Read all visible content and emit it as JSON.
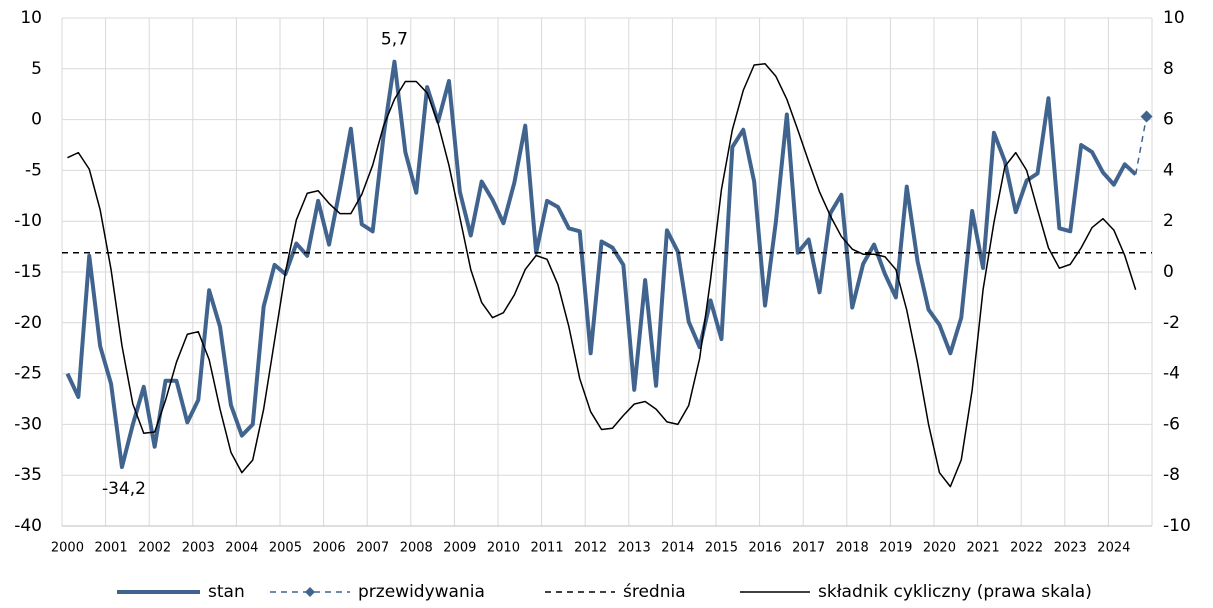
{
  "chart_data": {
    "type": "line",
    "categories": [
      "2000",
      null,
      null,
      null,
      "2001",
      null,
      null,
      null,
      "2002",
      null,
      null,
      null,
      "2003",
      null,
      null,
      null,
      "2004",
      null,
      null,
      null,
      "2005",
      null,
      null,
      null,
      "2006",
      null,
      null,
      null,
      "2007",
      null,
      null,
      null,
      "2008",
      null,
      null,
      null,
      "2009",
      null,
      null,
      null,
      "2010",
      null,
      null,
      null,
      "2011",
      null,
      null,
      null,
      "2012",
      null,
      null,
      null,
      "2013",
      null,
      null,
      null,
      "2014",
      null,
      null,
      null,
      "2015",
      null,
      null,
      null,
      "2016",
      null,
      null,
      null,
      "2017",
      null,
      null,
      null,
      "2018",
      null,
      null,
      null,
      "2019",
      null,
      null,
      null,
      "2020",
      null,
      null,
      null,
      "2021",
      null,
      null,
      null,
      "2022",
      null,
      null,
      null,
      "2023",
      null,
      null,
      null,
      "2024",
      null,
      null,
      null
    ],
    "ylim": [
      -40,
      10
    ],
    "yticks": [
      -40,
      -35,
      -30,
      -25,
      -20,
      -15,
      -10,
      -5,
      0,
      5,
      10
    ],
    "y2lim": [
      -10,
      10
    ],
    "y2ticks": [
      -10,
      -8,
      -6,
      -4,
      -2,
      0,
      2,
      4,
      6,
      8,
      10
    ],
    "grid": true,
    "legend": "bottom",
    "series": [
      {
        "name": "stan",
        "color": "#41648f",
        "style": "solid",
        "width": 4,
        "values": [
          -25,
          -27.3,
          -13.4,
          -22.3,
          -26,
          -34.2,
          -30,
          -26.3,
          -32.2,
          -25.7,
          -25.7,
          -29.8,
          -27.6,
          -16.8,
          -20.4,
          -28.1,
          -31.1,
          -30,
          -18.4,
          -14.3,
          -15.2,
          -12.2,
          -13.4,
          -8,
          -12.3,
          -6.8,
          -0.9,
          -10.3,
          -11,
          -1.6,
          5.7,
          -3.2,
          -7.2,
          3.2,
          -0.2,
          3.8,
          -7.1,
          -11.4,
          -6.1,
          -7.9,
          -10.2,
          -6.2,
          -0.6,
          -13.1,
          -8,
          -8.6,
          -10.7,
          -11,
          -23,
          -12,
          -12.6,
          -14.3,
          -26.6,
          -15.8,
          -26.2,
          -10.9,
          -13,
          -19.9,
          -22.4,
          -17.8,
          -21.6,
          -2.7,
          -1,
          -6.1,
          -18.3,
          -10,
          0.5,
          -13.1,
          -11.8,
          -17,
          -9.2,
          -7.4,
          -18.5,
          -14.2,
          -12.3,
          -15.2,
          -17.5,
          -6.6,
          -14,
          -18.7,
          -20.2,
          -23,
          -19.5,
          -9,
          -14.6,
          -1.3,
          -4.1,
          -9.1,
          -6,
          -5.3,
          2.1,
          -10.7,
          -11,
          -2.5,
          -3.2,
          -5.2,
          -6.4,
          -4.4,
          -5.4,
          null
        ],
        "value_labels": [
          null,
          null,
          null,
          null,
          null,
          "-34,2",
          null,
          null,
          null,
          null,
          null,
          null,
          null,
          null,
          null,
          null,
          null,
          null,
          null,
          null,
          null,
          null,
          null,
          null,
          null,
          null,
          null,
          null,
          null,
          null,
          "5,7",
          null,
          null,
          null,
          null,
          null,
          null,
          null,
          null,
          null,
          null,
          null,
          null,
          null,
          null,
          null,
          null,
          null,
          null,
          null,
          null,
          null,
          null,
          null,
          null,
          null,
          null,
          null,
          null,
          null,
          null,
          null,
          null,
          null,
          null,
          null,
          null,
          null,
          null,
          null,
          null,
          null,
          null,
          null,
          null,
          null,
          null,
          null,
          null,
          null,
          null,
          null,
          null,
          null,
          null,
          null,
          null,
          null,
          null,
          null,
          null,
          null,
          null,
          null,
          null,
          null,
          null,
          null,
          null,
          null
        ]
      },
      {
        "name": "przewidywania",
        "color": "#41648f",
        "style": "dashed",
        "width": 1.5,
        "marker": "diamond",
        "values": [
          null,
          null,
          null,
          null,
          null,
          null,
          null,
          null,
          null,
          null,
          null,
          null,
          null,
          null,
          null,
          null,
          null,
          null,
          null,
          null,
          null,
          null,
          null,
          null,
          null,
          null,
          null,
          null,
          null,
          null,
          null,
          null,
          null,
          null,
          null,
          null,
          null,
          null,
          null,
          null,
          null,
          null,
          null,
          null,
          null,
          null,
          null,
          null,
          null,
          null,
          null,
          null,
          null,
          null,
          null,
          null,
          null,
          null,
          null,
          null,
          null,
          null,
          null,
          null,
          null,
          null,
          null,
          null,
          null,
          null,
          null,
          null,
          null,
          null,
          null,
          null,
          null,
          null,
          null,
          null,
          null,
          null,
          null,
          null,
          null,
          null,
          null,
          null,
          null,
          null,
          null,
          null,
          null,
          null,
          null,
          null,
          null,
          null,
          null,
          0.3
        ]
      },
      {
        "name": "średnia",
        "color": "#000000",
        "style": "dashed",
        "width": 1.5,
        "constant": -13.1
      },
      {
        "name": "składnik cykliczny (prawa skala)",
        "color": "#000000",
        "style": "solid",
        "width": 1.5,
        "axis": "y2",
        "values": [
          4.5,
          4.7,
          4.05,
          2.45,
          0.1,
          -2.9,
          -5.2,
          -6.35,
          -6.3,
          -5.05,
          -3.55,
          -2.45,
          -2.35,
          -3.45,
          -5.4,
          -7.1,
          -7.9,
          -7.4,
          -5.4,
          -2.7,
          0,
          2.05,
          3.1,
          3.2,
          2.7,
          2.3,
          2.3,
          3.05,
          4.2,
          5.75,
          6.8,
          7.5,
          7.5,
          7.05,
          5.85,
          4.2,
          2.15,
          0.1,
          -1.2,
          -1.8,
          -1.6,
          -0.9,
          0.1,
          0.65,
          0.5,
          -0.5,
          -2.15,
          -4.2,
          -5.5,
          -6.2,
          -6.15,
          -5.65,
          -5.2,
          -5.1,
          -5.4,
          -5.9,
          -6,
          -5.25,
          -3.4,
          -0.3,
          3.25,
          5.6,
          7.15,
          8.15,
          8.2,
          7.7,
          6.8,
          5.6,
          4.35,
          3.15,
          2.2,
          1.4,
          0.9,
          0.7,
          0.7,
          0.6,
          0.1,
          -1.5,
          -3.6,
          -6,
          -7.9,
          -8.45,
          -7.4,
          -4.65,
          -0.7,
          1.95,
          4.15,
          4.7,
          4,
          2.45,
          0.95,
          0.15,
          0.3,
          0.95,
          1.75,
          2.1,
          1.65,
          0.65,
          -0.7,
          null
        ]
      }
    ]
  }
}
